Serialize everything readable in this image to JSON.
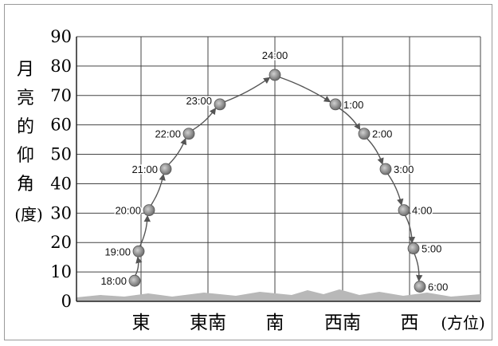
{
  "chart_data": {
    "type": "scatter",
    "title": "",
    "ylabel_chars": [
      "月",
      "亮",
      "的",
      "仰",
      "角"
    ],
    "ylabel_unit": "(度)",
    "xlabel_unit": "(方位)",
    "ylim": [
      0,
      90
    ],
    "yticks": [
      0,
      10,
      20,
      30,
      40,
      50,
      60,
      70,
      80,
      90
    ],
    "grid": true,
    "directions": [
      "東",
      "東南",
      "南",
      "西南",
      "西"
    ],
    "points": [
      {
        "time": "18:00",
        "altitude": 7
      },
      {
        "time": "19:00",
        "altitude": 17
      },
      {
        "time": "20:00",
        "altitude": 31
      },
      {
        "time": "21:00",
        "altitude": 45
      },
      {
        "time": "22:00",
        "altitude": 57
      },
      {
        "time": "23:00",
        "altitude": 67
      },
      {
        "time": "24:00",
        "altitude": 77
      },
      {
        "time": "1:00",
        "altitude": 67
      },
      {
        "time": "2:00",
        "altitude": 57
      },
      {
        "time": "3:00",
        "altitude": 45
      },
      {
        "time": "4:00",
        "altitude": 31
      },
      {
        "time": "5:00",
        "altitude": 18
      },
      {
        "time": "6:00",
        "altitude": 5
      }
    ]
  },
  "colors": {
    "moon": "#8a8a8a",
    "curve": "#555555",
    "grid": "#444444",
    "ground": "#b8b8b8"
  }
}
